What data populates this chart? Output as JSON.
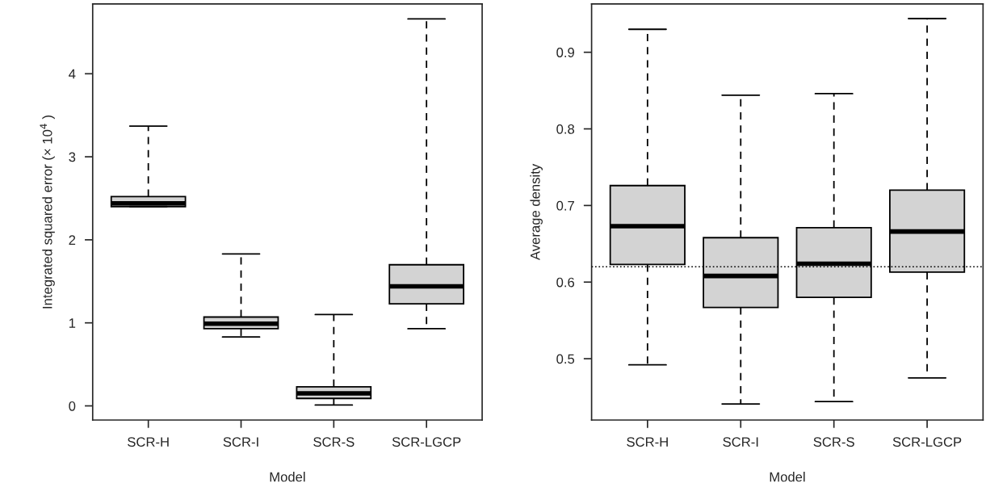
{
  "chart_data": [
    {
      "type": "box",
      "xlabel": "Model",
      "ylabel": "Integrated squared error (× 10$^{4}$ )",
      "categories": [
        "SCR-H",
        "SCR-I",
        "SCR-S",
        "SCR-LGCP"
      ],
      "color": "#d3d3d3",
      "ylim": [
        -0.17,
        4.84
      ],
      "yticks": [
        0,
        1,
        2,
        3,
        4
      ],
      "grid": false,
      "boxes": [
        {
          "low": 2.4,
          "q1": 2.4,
          "median": 2.44,
          "q3": 2.52,
          "high": 3.37
        },
        {
          "low": 0.83,
          "q1": 0.93,
          "median": 0.99,
          "q3": 1.07,
          "high": 1.83
        },
        {
          "low": 0.01,
          "q1": 0.09,
          "median": 0.15,
          "q3": 0.23,
          "high": 1.1
        },
        {
          "low": 0.93,
          "q1": 1.23,
          "median": 1.44,
          "q3": 1.7,
          "high": 4.66
        }
      ]
    },
    {
      "type": "box",
      "xlabel": "Model",
      "ylabel": "Average density",
      "categories": [
        "SCR-H",
        "SCR-I",
        "SCR-S",
        "SCR-LGCP"
      ],
      "color": "#d3d3d3",
      "ylim": [
        0.42,
        0.963
      ],
      "yticks": [
        0.5,
        0.6,
        0.7,
        0.8,
        0.9
      ],
      "grid": false,
      "ref_lines": [
        {
          "axis": "y",
          "value": 0.62,
          "line_style": "dotted"
        }
      ],
      "boxes": [
        {
          "low": 0.492,
          "q1": 0.623,
          "median": 0.673,
          "q3": 0.726,
          "high": 0.93
        },
        {
          "low": 0.441,
          "q1": 0.567,
          "median": 0.608,
          "q3": 0.658,
          "high": 0.844
        },
        {
          "low": 0.444,
          "q1": 0.58,
          "median": 0.624,
          "q3": 0.671,
          "high": 0.846
        },
        {
          "low": 0.475,
          "q1": 0.613,
          "median": 0.666,
          "q3": 0.72,
          "high": 0.944
        }
      ]
    }
  ]
}
